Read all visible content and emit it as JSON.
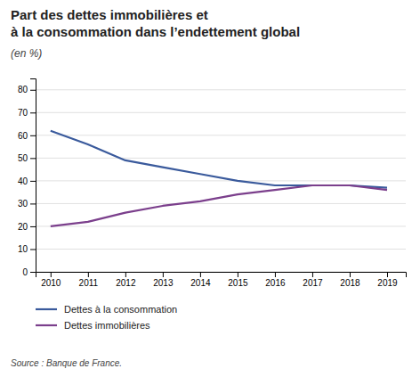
{
  "chart_data": {
    "type": "line",
    "title": [
      "Part des dettes immobilières et",
      "à la consommation dans l’endettement global"
    ],
    "subtitle": "(en %)",
    "annotations": [
      "Source : Banque de France."
    ],
    "x": [
      2010,
      2011,
      2012,
      2013,
      2014,
      2015,
      2016,
      2017,
      2018,
      2019
    ],
    "series": [
      {
        "name": "Dettes à la consommation",
        "color": "#3a5a9c",
        "values": [
          62,
          56,
          49,
          46,
          43,
          40,
          38,
          38,
          38,
          37
        ]
      },
      {
        "name": "Dettes immobilières",
        "color": "#7b3f8c",
        "values": [
          20,
          22,
          26,
          29,
          31,
          34,
          36,
          38,
          38,
          36
        ]
      }
    ],
    "xlim": [
      2009.6,
      2019.5
    ],
    "xticks": [
      2010,
      2011,
      2012,
      2013,
      2014,
      2015,
      2016,
      2017,
      2018,
      2019
    ],
    "ylim": [
      0,
      85
    ],
    "yticks": [
      0,
      10,
      20,
      30,
      40,
      50,
      60,
      70,
      80
    ],
    "grid": true,
    "legend": "bottom"
  }
}
